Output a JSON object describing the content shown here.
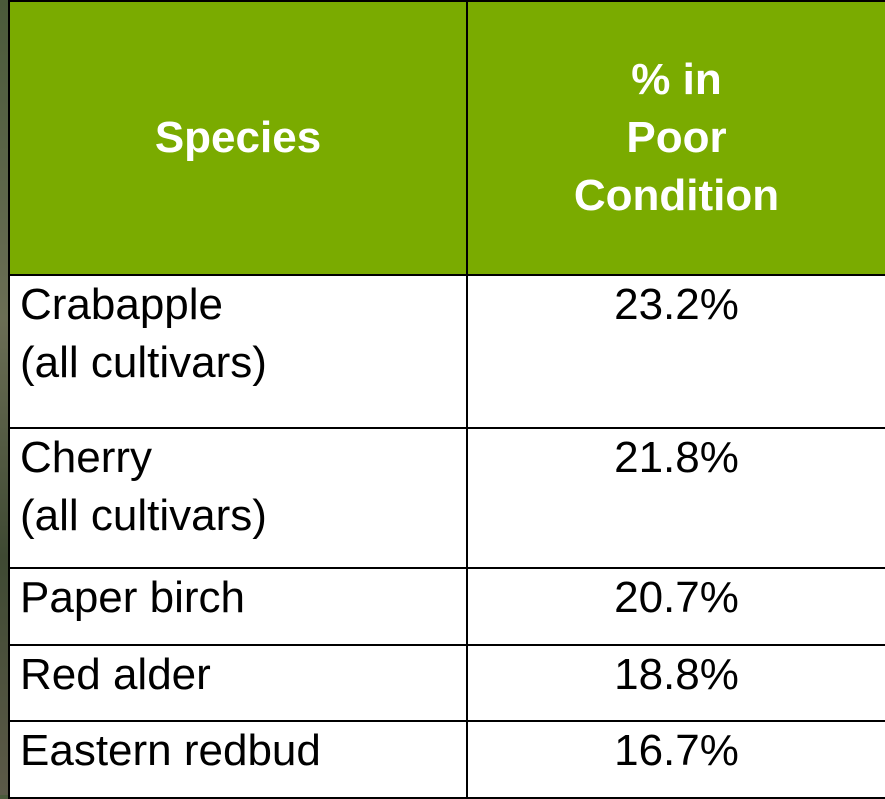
{
  "table": {
    "header": [
      "Species",
      "% in\nPoor\nCondition"
    ],
    "rows": [
      [
        "Crabapple\n(all cultivars)",
        "23.2%"
      ],
      [
        "Cherry\n(all cultivars)",
        "21.8%"
      ],
      [
        "Paper birch",
        "20.7%"
      ],
      [
        "Red alder",
        "18.8%"
      ],
      [
        "Eastern redbud",
        "16.7%"
      ]
    ]
  }
}
